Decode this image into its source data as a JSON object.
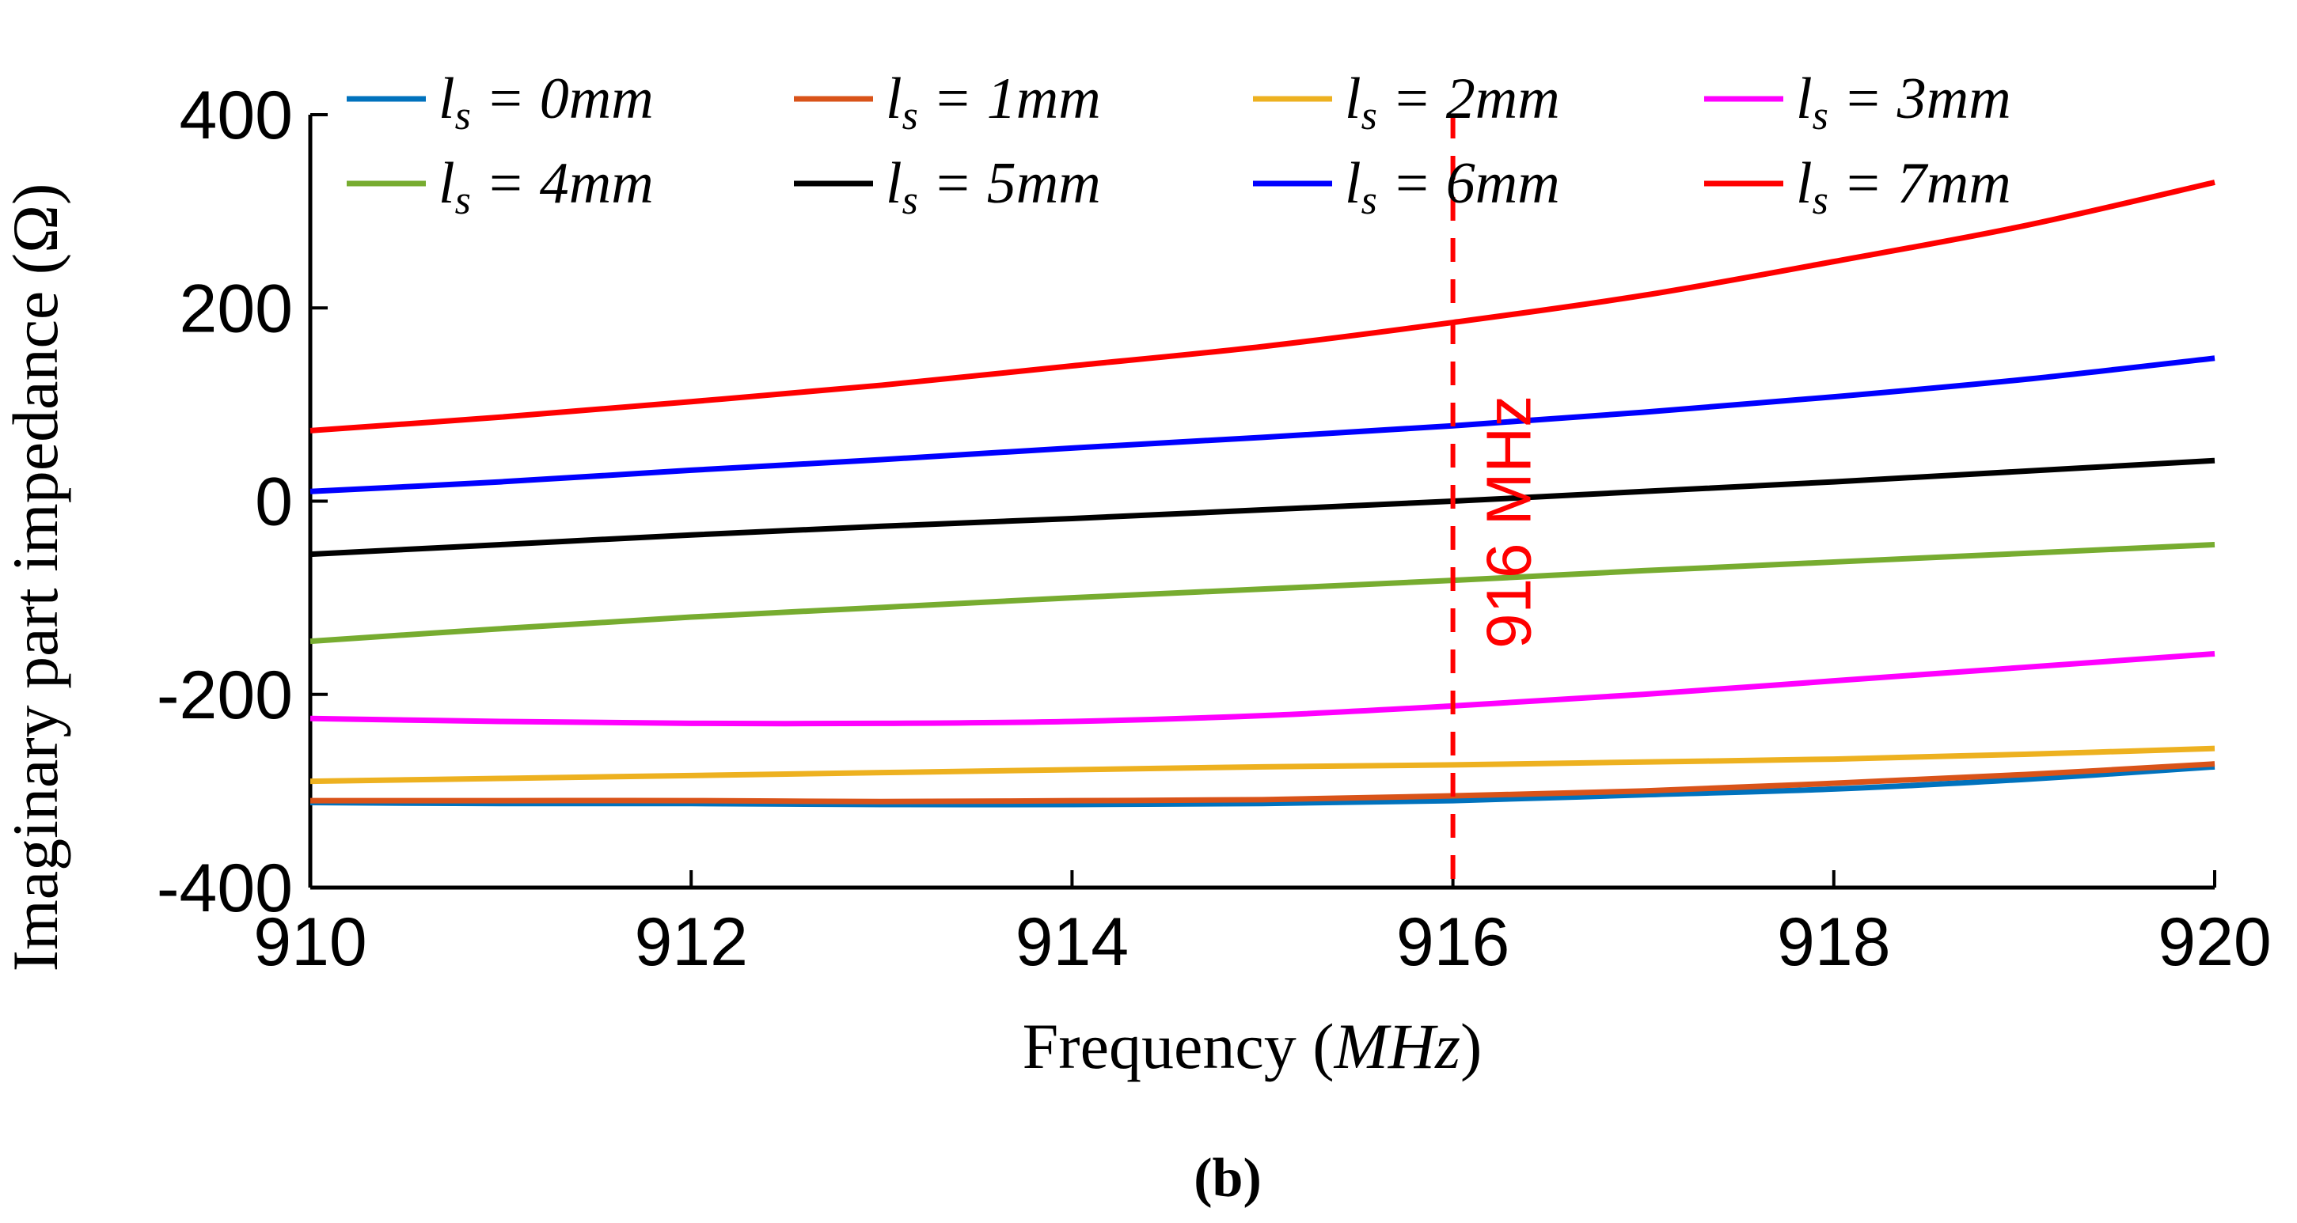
{
  "chart_data": {
    "type": "line",
    "xlabel": "Frequency (MHz)",
    "ylabel": "Imaginary part impedance (Ω)",
    "xlim": [
      910,
      920
    ],
    "ylim": [
      -400,
      400
    ],
    "xticks": [
      910,
      912,
      914,
      916,
      918,
      920
    ],
    "yticks": [
      400,
      200,
      0,
      -200,
      -400
    ],
    "x": [
      910,
      911,
      912,
      913,
      914,
      915,
      916,
      917,
      918,
      919,
      920
    ],
    "series": [
      {
        "name": "l_s = 0mm",
        "label_sym": "l",
        "label_sub": "s",
        "label_rest": " = 0mm",
        "color": "#0072BD",
        "values": [
          -312,
          -313,
          -313,
          -314,
          -314,
          -313,
          -310,
          -304,
          -298,
          -288,
          -275
        ]
      },
      {
        "name": "l_s = 1mm",
        "label_sym": "l",
        "label_sub": "s",
        "label_rest": " = 1mm",
        "color": "#D95319",
        "values": [
          -310,
          -310,
          -310,
          -311,
          -310,
          -309,
          -305,
          -300,
          -292,
          -283,
          -272
        ]
      },
      {
        "name": "l_s = 2mm",
        "label_sym": "l",
        "label_sub": "s",
        "label_rest": " = 2mm",
        "color": "#EDB120",
        "values": [
          -290,
          -287,
          -284,
          -281,
          -278,
          -275,
          -273,
          -270,
          -267,
          -262,
          -256
        ]
      },
      {
        "name": "l_s = 3mm",
        "label_sym": "l",
        "label_sub": "s",
        "label_rest": " = 3mm",
        "color": "#FF00FF",
        "values": [
          -225,
          -228,
          -230,
          -230,
          -228,
          -222,
          -212,
          -200,
          -186,
          -172,
          -158
        ]
      },
      {
        "name": "l_s = 4mm",
        "label_sym": "l",
        "label_sub": "s",
        "label_rest": " = 4mm",
        "color": "#77AC30",
        "values": [
          -145,
          -132,
          -120,
          -110,
          -100,
          -91,
          -82,
          -72,
          -63,
          -54,
          -45
        ]
      },
      {
        "name": "l_s = 5mm",
        "label_sym": "l",
        "label_sub": "s",
        "label_rest": " = 5mm",
        "color": "#000000",
        "values": [
          -55,
          -45,
          -35,
          -26,
          -18,
          -9,
          0,
          10,
          20,
          31,
          42
        ]
      },
      {
        "name": "l_s = 6mm",
        "label_sym": "l",
        "label_sub": "s",
        "label_rest": " = 6mm",
        "color": "#0000FF",
        "values": [
          10,
          20,
          32,
          43,
          55,
          66,
          78,
          92,
          108,
          126,
          148
        ]
      },
      {
        "name": "l_s = 7mm",
        "label_sym": "l",
        "label_sub": "s",
        "label_rest": " = 7mm",
        "color": "#FF0000",
        "values": [
          73,
          87,
          103,
          120,
          140,
          160,
          185,
          213,
          248,
          285,
          330
        ]
      }
    ],
    "annotations": [
      {
        "text": "916 MHz",
        "x": 916,
        "style": "vertical dashed line",
        "color": "#FF0000"
      }
    ],
    "legend": {
      "placement": "top",
      "columns": 4
    }
  },
  "caption": "(b)"
}
